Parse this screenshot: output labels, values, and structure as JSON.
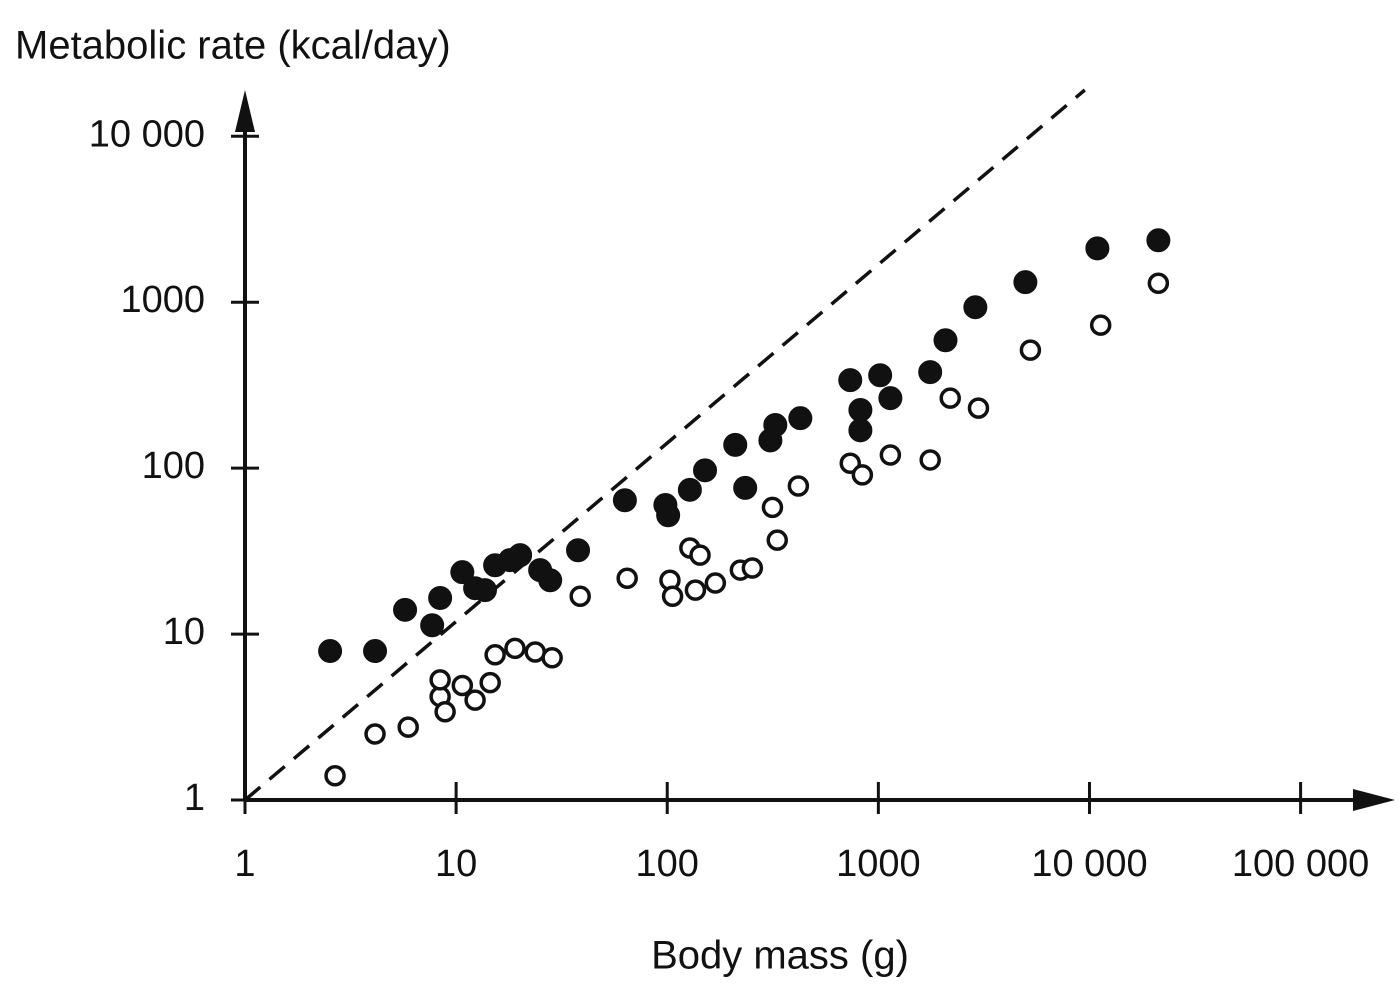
{
  "chart_data": {
    "type": "scatter",
    "y_label": "Metabolic rate (kcal/day)",
    "x_label": "Body mass (g)",
    "x_scale": "log",
    "y_scale": "log",
    "xlim": [
      1,
      280000
    ],
    "ylim": [
      1,
      19000
    ],
    "xticks": [
      1,
      10,
      100,
      1000,
      {
        "value": 10000,
        "label": "10 000"
      },
      {
        "value": 100000,
        "label": "100 000"
      }
    ],
    "yticks": [
      1,
      10,
      100,
      1000,
      {
        "value": 10000,
        "label": "10 000"
      }
    ],
    "series": [
      {
        "marker": "filled",
        "color": "#111111",
        "x": [
          2.53,
          4.13,
          5.73,
          8.4,
          7.7,
          10.7,
          12.3,
          13.7,
          15.3,
          18.0,
          20.1,
          25,
          27.9,
          37.8,
          63,
          98,
          101,
          128,
          151,
          210,
          234,
          308,
          325,
          427,
          736,
          1020,
          822,
          822,
          1140,
          1760,
          2080,
          2880,
          4970,
          10900,
          21200
        ],
        "values": [
          7.9,
          7.9,
          14,
          16.5,
          11.3,
          23.6,
          18.9,
          18.4,
          26,
          27.9,
          29.9,
          24.3,
          21.1,
          32,
          64,
          60,
          52,
          74,
          97,
          138,
          76,
          147,
          182,
          200,
          339,
          363,
          224,
          169,
          264,
          379,
          590,
          933,
          1320,
          2110,
          2360
        ]
      },
      {
        "marker": "open",
        "color": "#111111",
        "x": [
          2.67,
          4.13,
          5.93,
          8.4,
          8.87,
          10.7,
          8.4,
          12.3,
          14.5,
          15.3,
          19.0,
          23.7,
          28.5,
          38.7,
          64.6,
          103,
          106,
          128,
          143,
          136,
          169,
          222,
          253,
          315,
          418,
          332,
          736,
          840,
          1140,
          1760,
          2190,
          2980,
          5250,
          11300,
          21200
        ],
        "values": [
          1.4,
          2.5,
          2.75,
          4.2,
          3.4,
          4.9,
          5.3,
          4.0,
          5.1,
          7.5,
          8.2,
          7.8,
          7.2,
          16.9,
          21.7,
          21.1,
          16.9,
          33,
          29.9,
          18.4,
          20.3,
          24.3,
          25,
          58,
          78,
          36.8,
          107,
          91,
          120,
          112,
          264,
          230,
          514,
          727,
          1300
        ]
      },
      {
        "marker": "dashed-line",
        "color": "#111111",
        "x": [
          1,
          9500
        ],
        "values": [
          1,
          19000
        ]
      }
    ]
  }
}
